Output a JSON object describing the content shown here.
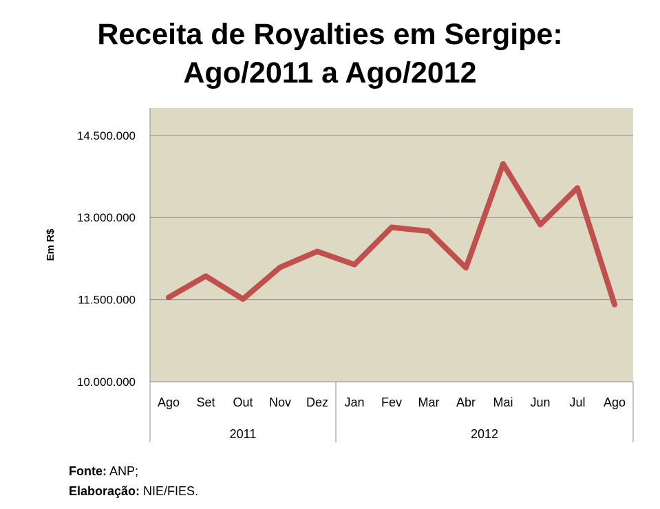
{
  "chart_data": {
    "type": "line",
    "title_lines": [
      "Receita de Royalties em Sergipe:",
      "Ago/2011 a Ago/2012"
    ],
    "ylabel": "Em R$",
    "xlabel": "",
    "ylim": [
      10000000,
      15000000
    ],
    "yticks": [
      10000000,
      11500000,
      13000000,
      14500000
    ],
    "ytick_labels": [
      "10.000.000",
      "11.500.000",
      "13.000.000",
      "14.500.000"
    ],
    "grid": true,
    "categories": [
      "Ago",
      "Set",
      "Out",
      "Nov",
      "Dez",
      "Jan",
      "Fev",
      "Mar",
      "Abr",
      "Mai",
      "Jun",
      "Jul",
      "Ago"
    ],
    "groups": [
      {
        "label": "2011",
        "count": 5
      },
      {
        "label": "2012",
        "count": 8
      }
    ],
    "series": [
      {
        "name": "Receita de Royalties",
        "color": "#c0504d",
        "values": [
          11540000,
          11930000,
          11510000,
          12090000,
          12380000,
          12140000,
          12820000,
          12750000,
          12080000,
          13980000,
          12870000,
          13540000,
          11410000
        ]
      }
    ],
    "plot_background": "#ddd9c3"
  },
  "footer": {
    "source_label": "Fonte:",
    "source_value": " ANP;",
    "elab_label": "Elaboração:",
    "elab_value": " NIE/FIES."
  }
}
